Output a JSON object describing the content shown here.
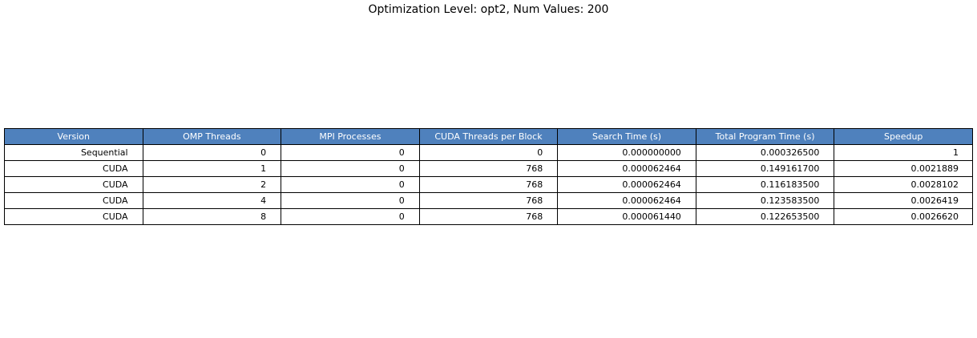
{
  "title": "Optimization Level: opt2, Num Values: 200",
  "colors": {
    "header_bg": "#4f81bd",
    "header_text": "#ffffff",
    "border": "#000000",
    "cell_bg": "#ffffff"
  },
  "chart_data": {
    "type": "table",
    "title": "Optimization Level: opt2, Num Values: 200",
    "columns": [
      "Version",
      "OMP Threads",
      "MPI Processes",
      "CUDA Threads per Block",
      "Search Time (s)",
      "Total Program Time (s)",
      "Speedup"
    ],
    "rows": [
      [
        "Sequential",
        "0",
        "0",
        "0",
        "0.000000000",
        "0.000326500",
        "1"
      ],
      [
        "CUDA",
        "1",
        "0",
        "768",
        "0.000062464",
        "0.149161700",
        "0.0021889"
      ],
      [
        "CUDA",
        "2",
        "0",
        "768",
        "0.000062464",
        "0.116183500",
        "0.0028102"
      ],
      [
        "CUDA",
        "4",
        "0",
        "768",
        "0.000062464",
        "0.123583500",
        "0.0026419"
      ],
      [
        "CUDA",
        "8",
        "0",
        "768",
        "0.000061440",
        "0.122653500",
        "0.0026620"
      ]
    ]
  }
}
